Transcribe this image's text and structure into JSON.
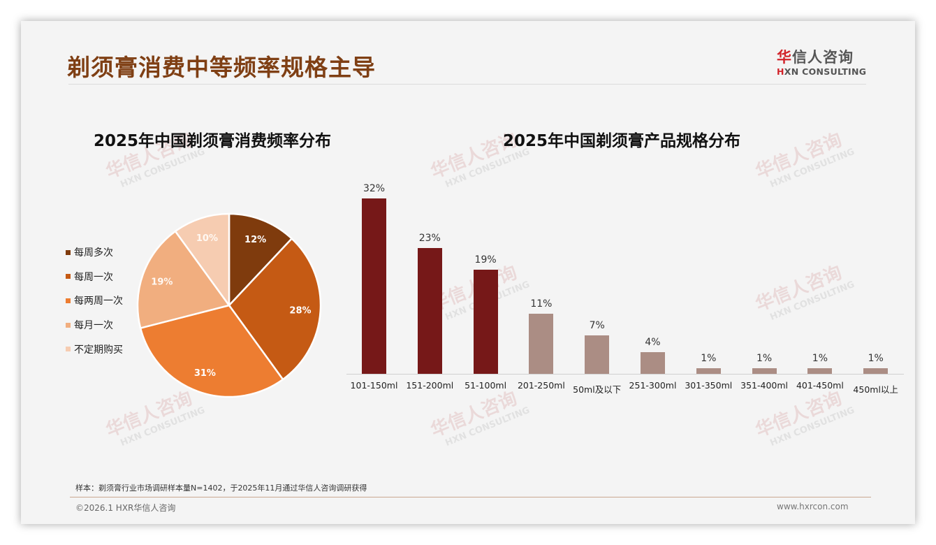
{
  "header": {
    "title": "剃须膏消费中等频率规格主导",
    "logo": {
      "cn_first": "华",
      "cn_rest": "信人咨询",
      "en_mark": "H",
      "en_rest": "XN CONSULTING"
    }
  },
  "watermark": {
    "cn": "华信人咨询",
    "en": "HXN CONSULTING"
  },
  "colors": {
    "title": "#7f3f14",
    "pie": [
      "#7f3b0d",
      "#c55a14",
      "#ed7d31",
      "#f1ae7f",
      "#f6ccb1"
    ],
    "bar_highlight": "#761818",
    "bar_normal": "#ab8d84"
  },
  "chart_data": [
    {
      "type": "pie",
      "title": "2025年中国剃须膏消费频率分布",
      "categories": [
        "每周多次",
        "每周一次",
        "每两周一次",
        "每月一次",
        "不定期购买"
      ],
      "values": [
        12,
        28,
        31,
        19,
        10
      ],
      "labels": [
        "12%",
        "28%",
        "31%",
        "19%",
        "10%"
      ],
      "legend_position": "left",
      "start_angle": "12 o'clock, clockwise"
    },
    {
      "type": "bar",
      "title": "2025年中国剃须膏产品规格分布",
      "categories": [
        "101-150ml",
        "151-200ml",
        "51-100ml",
        "201-250ml",
        "50ml及以下",
        "251-300ml",
        "301-350ml",
        "351-400ml",
        "401-450ml",
        "450ml以上"
      ],
      "values": [
        32,
        23,
        19,
        11,
        7,
        4,
        1,
        1,
        1,
        1
      ],
      "labels": [
        "32%",
        "23%",
        "19%",
        "11%",
        "7%",
        "4%",
        "1%",
        "1%",
        "1%",
        "1%"
      ],
      "highlighted_top_n": 3,
      "xlabel": "",
      "ylabel": "",
      "ylim": [
        0,
        32
      ],
      "grid": false
    }
  ],
  "footer": {
    "note": "样本：剃须膏行业市场调研样本量N=1402，于2025年11月通过华信人咨询调研获得",
    "copyright": "©2026.1 HXR华信人咨询",
    "website": "www.hxrcon.com"
  }
}
